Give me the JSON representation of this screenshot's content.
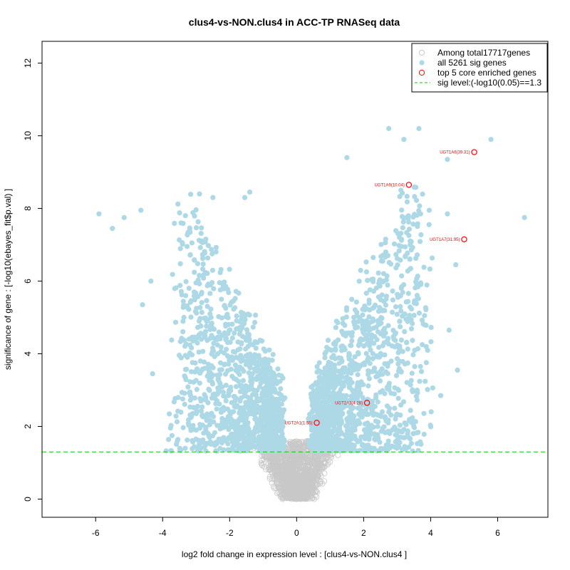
{
  "chart_data": {
    "type": "scatter",
    "title": "clus4-vs-NON.clus4 in ACC-TP RNASeq data",
    "xlabel": "log2 fold change in expression level : [clus4-vs-NON.clus4 ]",
    "ylabel": "significance of gene : [-log10(ebayes_fit$p.val) ]",
    "xlim": [
      -7.6,
      7.5
    ],
    "ylim": [
      -0.5,
      12.6
    ],
    "xticks": [
      -6,
      -4,
      -2,
      0,
      2,
      4,
      6
    ],
    "yticks": [
      0,
      2,
      4,
      6,
      8,
      10,
      12
    ],
    "sig_level": 1.3,
    "colors": {
      "nonsig": "#c8c8c8",
      "sig": "#add8e6",
      "core": "#ff0000",
      "threshold": "#00cc00",
      "axis": "#000000"
    },
    "legend": {
      "placement": "top-right",
      "items": [
        {
          "label": "Among total17717genes",
          "marker": "open-circle-gray"
        },
        {
          "label": "all 5261 sig genes",
          "marker": "filled-circle-lightblue"
        },
        {
          "label": "top 5 core enriched genes",
          "marker": "open-circle-red"
        },
        {
          "label": "sig level:(-log10(0.05)==1.3",
          "marker": "dashed-line-green"
        }
      ]
    },
    "core_genes": [
      {
        "label": "UGT1A6(39.31)",
        "x": 5.3,
        "y": 9.55
      },
      {
        "label": "UGT1A9(10.04)",
        "x": 3.35,
        "y": 8.65
      },
      {
        "label": "UGT1A7(31.95)",
        "x": 5.0,
        "y": 7.15
      },
      {
        "label": "UGT2A3(4.28)",
        "x": 2.1,
        "y": 2.65
      },
      {
        "label": "UGT2A1(1.55)",
        "x": 0.6,
        "y": 2.1
      }
    ],
    "notable_sig_points": [
      {
        "x": -5.9,
        "y": 7.85
      },
      {
        "x": -5.5,
        "y": 7.45
      },
      {
        "x": -5.15,
        "y": 7.75
      },
      {
        "x": -4.65,
        "y": 7.95
      },
      {
        "x": -4.35,
        "y": 6.0
      },
      {
        "x": -4.6,
        "y": 5.35
      },
      {
        "x": -4.3,
        "y": 3.45
      },
      {
        "x": -2.9,
        "y": 8.4
      },
      {
        "x": -2.5,
        "y": 8.3
      },
      {
        "x": -1.4,
        "y": 8.45
      },
      {
        "x": -1.55,
        "y": 8.3
      },
      {
        "x": 2.75,
        "y": 10.2
      },
      {
        "x": 3.2,
        "y": 9.9
      },
      {
        "x": 3.65,
        "y": 10.2
      },
      {
        "x": 5.8,
        "y": 9.9
      },
      {
        "x": 6.8,
        "y": 7.75
      },
      {
        "x": 4.5,
        "y": 9.35
      },
      {
        "x": 1.5,
        "y": 9.4
      },
      {
        "x": 4.8,
        "y": 3.55
      },
      {
        "x": 4.3,
        "y": 2.85
      },
      {
        "x": 3.7,
        "y": 7.85
      },
      {
        "x": 4.5,
        "y": 7.85
      },
      {
        "x": 4.55,
        "y": 4.65
      },
      {
        "x": 4.75,
        "y": 6.45
      }
    ],
    "note": "Volcano plot; ~17717 genes total, 5261 significant (light blue); dense V-shaped cloud centered at x=0"
  }
}
